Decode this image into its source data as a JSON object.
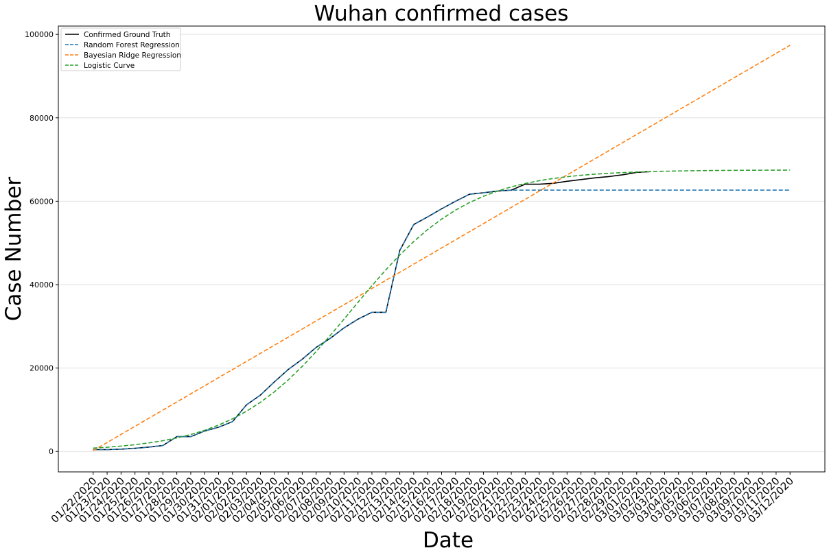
{
  "chart_data": {
    "type": "line",
    "title": "Wuhan confirmed cases",
    "x_label": "Date",
    "y_label": "Case Number",
    "categories": [
      "01/22/2020",
      "01/23/2020",
      "01/24/2020",
      "01/25/2020",
      "01/26/2020",
      "01/27/2020",
      "01/28/2020",
      "01/29/2020",
      "01/30/2020",
      "01/31/2020",
      "02/01/2020",
      "02/02/2020",
      "02/03/2020",
      "02/04/2020",
      "02/05/2020",
      "02/06/2020",
      "02/07/2020",
      "02/08/2020",
      "02/09/2020",
      "02/10/2020",
      "02/11/2020",
      "02/12/2020",
      "02/13/2020",
      "02/14/2020",
      "02/15/2020",
      "02/16/2020",
      "02/17/2020",
      "02/18/2020",
      "02/19/2020",
      "02/20/2020",
      "02/21/2020",
      "02/22/2020",
      "02/23/2020",
      "02/24/2020",
      "02/25/2020",
      "02/26/2020",
      "02/27/2020",
      "02/28/2020",
      "02/29/2020",
      "03/01/2020",
      "03/02/2020",
      "03/03/2020",
      "03/04/2020",
      "03/05/2020",
      "03/06/2020",
      "03/07/2020",
      "03/08/2020",
      "03/09/2020",
      "03/10/2020",
      "03/11/2020",
      "03/12/2020"
    ],
    "series": [
      {
        "name": "Confirmed Ground Truth",
        "color": "#000000",
        "linestyle": "solid",
        "values": [
          444,
          444,
          549,
          761,
          1058,
          1423,
          3554,
          3554,
          4903,
          5806,
          7153,
          11177,
          13522,
          16678,
          19665,
          22112,
          24953,
          27100,
          29631,
          31728,
          33366,
          33366,
          48206,
          54406,
          56249,
          58182,
          59989,
          61682,
          62031,
          62442,
          62662,
          64084,
          64084,
          64287,
          64786,
          65187,
          65596,
          65914,
          66337,
          66907,
          67103,
          null,
          null,
          null,
          null,
          null,
          null,
          null,
          null,
          null,
          null
        ]
      },
      {
        "name": "Random Forest Regression",
        "color": "#1f77b4",
        "linestyle": "dashed",
        "values": [
          444,
          444,
          549,
          761,
          1058,
          1423,
          3554,
          3554,
          4903,
          5806,
          7153,
          11177,
          13522,
          16678,
          19665,
          22112,
          24953,
          27100,
          29631,
          31728,
          33366,
          33366,
          48206,
          54406,
          56249,
          58182,
          59989,
          61682,
          62031,
          62442,
          62662,
          62662,
          62662,
          62662,
          62662,
          62662,
          62662,
          62662,
          62662,
          62662,
          62662,
          62662,
          62662,
          62662,
          62662,
          62662,
          62662,
          62662,
          62662,
          62662,
          62662
        ]
      },
      {
        "name": "Bayesian Ridge Regression",
        "color": "#ff7f0e",
        "linestyle": "dashed",
        "values": [
          200,
          2144,
          4088,
          6032,
          7976,
          9920,
          11864,
          13808,
          15752,
          17696,
          19640,
          21584,
          23528,
          25472,
          27416,
          29360,
          31304,
          33248,
          35192,
          37136,
          39080,
          41024,
          42968,
          44912,
          46856,
          48800,
          50744,
          52688,
          54632,
          56576,
          58520,
          60464,
          62408,
          64352,
          66296,
          68240,
          70184,
          72128,
          74072,
          76016,
          77960,
          79904,
          81848,
          83792,
          85736,
          87680,
          89624,
          91568,
          93512,
          95456,
          97400
        ]
      },
      {
        "name": "Logistic Curve",
        "color": "#2ca02c",
        "linestyle": "dashed",
        "values": [
          802,
          1015,
          1285,
          1623,
          2045,
          2575,
          3239,
          4061,
          5075,
          6318,
          7826,
          9636,
          11784,
          14292,
          17171,
          20405,
          23953,
          27766,
          31734,
          35770,
          39735,
          43548,
          47104,
          50335,
          53215,
          55723,
          57866,
          59676,
          61186,
          62425,
          63440,
          64261,
          64923,
          65457,
          65879,
          66215,
          66489,
          66700,
          66868,
          67001,
          67107,
          67190,
          67256,
          67307,
          67348,
          67381,
          67406,
          67426,
          67441,
          67454,
          67464
        ]
      }
    ],
    "ylim": [
      -4900,
      102000
    ],
    "yticks": [
      0,
      20000,
      40000,
      60000,
      80000,
      100000
    ],
    "grid": true,
    "legend": "upper left"
  }
}
